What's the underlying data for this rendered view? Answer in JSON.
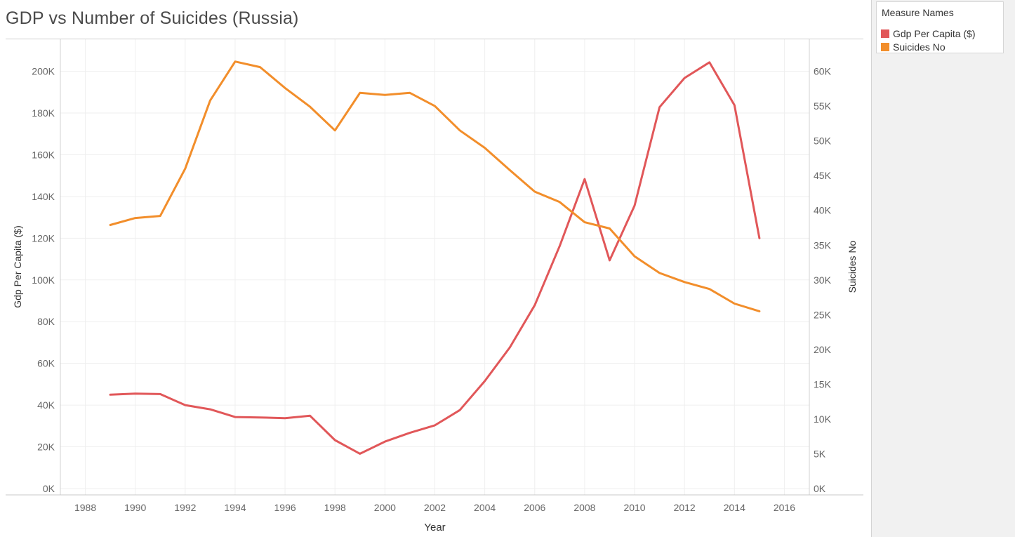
{
  "title": "GDP vs Number of Suicides (Russia)",
  "legend": {
    "title": "Measure Names",
    "items": [
      {
        "label": "Gdp Per Capita ($)",
        "color": "#e15759"
      },
      {
        "label": "Suicides No",
        "color": "#f28e2b"
      }
    ]
  },
  "chart_data": {
    "type": "line",
    "title": "GDP vs Number of Suicides (Russia)",
    "xlabel": "Year",
    "ylabel_left": "Gdp Per Capita ($)",
    "ylabel_right": "Suicides No",
    "xlim": [
      1987,
      2017
    ],
    "x_ticks": [
      1988,
      1990,
      1992,
      1994,
      1996,
      1998,
      2000,
      2002,
      2004,
      2006,
      2008,
      2010,
      2012,
      2014,
      2016
    ],
    "y_left_ticks": [
      0,
      20000,
      40000,
      60000,
      80000,
      100000,
      120000,
      140000,
      160000,
      180000,
      200000
    ],
    "y_left_tick_labels": [
      "0K",
      "20K",
      "40K",
      "60K",
      "80K",
      "100K",
      "120K",
      "140K",
      "160K",
      "180K",
      "200K"
    ],
    "y_left_lim": [
      0,
      215000
    ],
    "y_right_ticks": [
      0,
      5000,
      10000,
      15000,
      20000,
      25000,
      30000,
      35000,
      40000,
      45000,
      50000,
      55000,
      60000
    ],
    "y_right_tick_labels": [
      "0K",
      "5K",
      "10K",
      "15K",
      "20K",
      "25K",
      "30K",
      "35K",
      "40K",
      "45K",
      "50K",
      "55K",
      "60K"
    ],
    "y_right_lim": [
      0,
      64500
    ],
    "grid": true,
    "legend_position": "right",
    "series": [
      {
        "name": "Gdp Per Capita ($)",
        "axis": "left",
        "color": "#e15759",
        "x": [
          1989,
          1990,
          1991,
          1992,
          1993,
          1994,
          1995,
          1996,
          1997,
          1998,
          1999,
          2000,
          2001,
          2002,
          2003,
          2004,
          2005,
          2006,
          2007,
          2008,
          2009,
          2010,
          2011,
          2012,
          2013,
          2014,
          2015
        ],
        "y": [
          45000,
          45500,
          45300,
          40000,
          38000,
          34300,
          34100,
          33700,
          34900,
          23200,
          16700,
          22500,
          26700,
          30300,
          37600,
          51500,
          67600,
          87900,
          116200,
          148300,
          109400,
          135600,
          182800,
          196800,
          204300,
          183800,
          120000
        ]
      },
      {
        "name": "Suicides No",
        "axis": "right",
        "color": "#f28e2b",
        "x": [
          1989,
          1990,
          1991,
          1992,
          1993,
          1994,
          1995,
          1996,
          1997,
          1998,
          1999,
          2000,
          2001,
          2002,
          2003,
          2004,
          2005,
          2006,
          2007,
          2008,
          2009,
          2010,
          2011,
          2012,
          2013,
          2014,
          2015
        ],
        "y": [
          37900,
          38900,
          39200,
          46000,
          55800,
          61400,
          60600,
          57600,
          54900,
          51500,
          56900,
          56600,
          56900,
          55000,
          51500,
          49000,
          45800,
          42700,
          41200,
          38300,
          37400,
          33400,
          31000,
          29700,
          28700,
          26600,
          25500
        ]
      }
    ]
  }
}
